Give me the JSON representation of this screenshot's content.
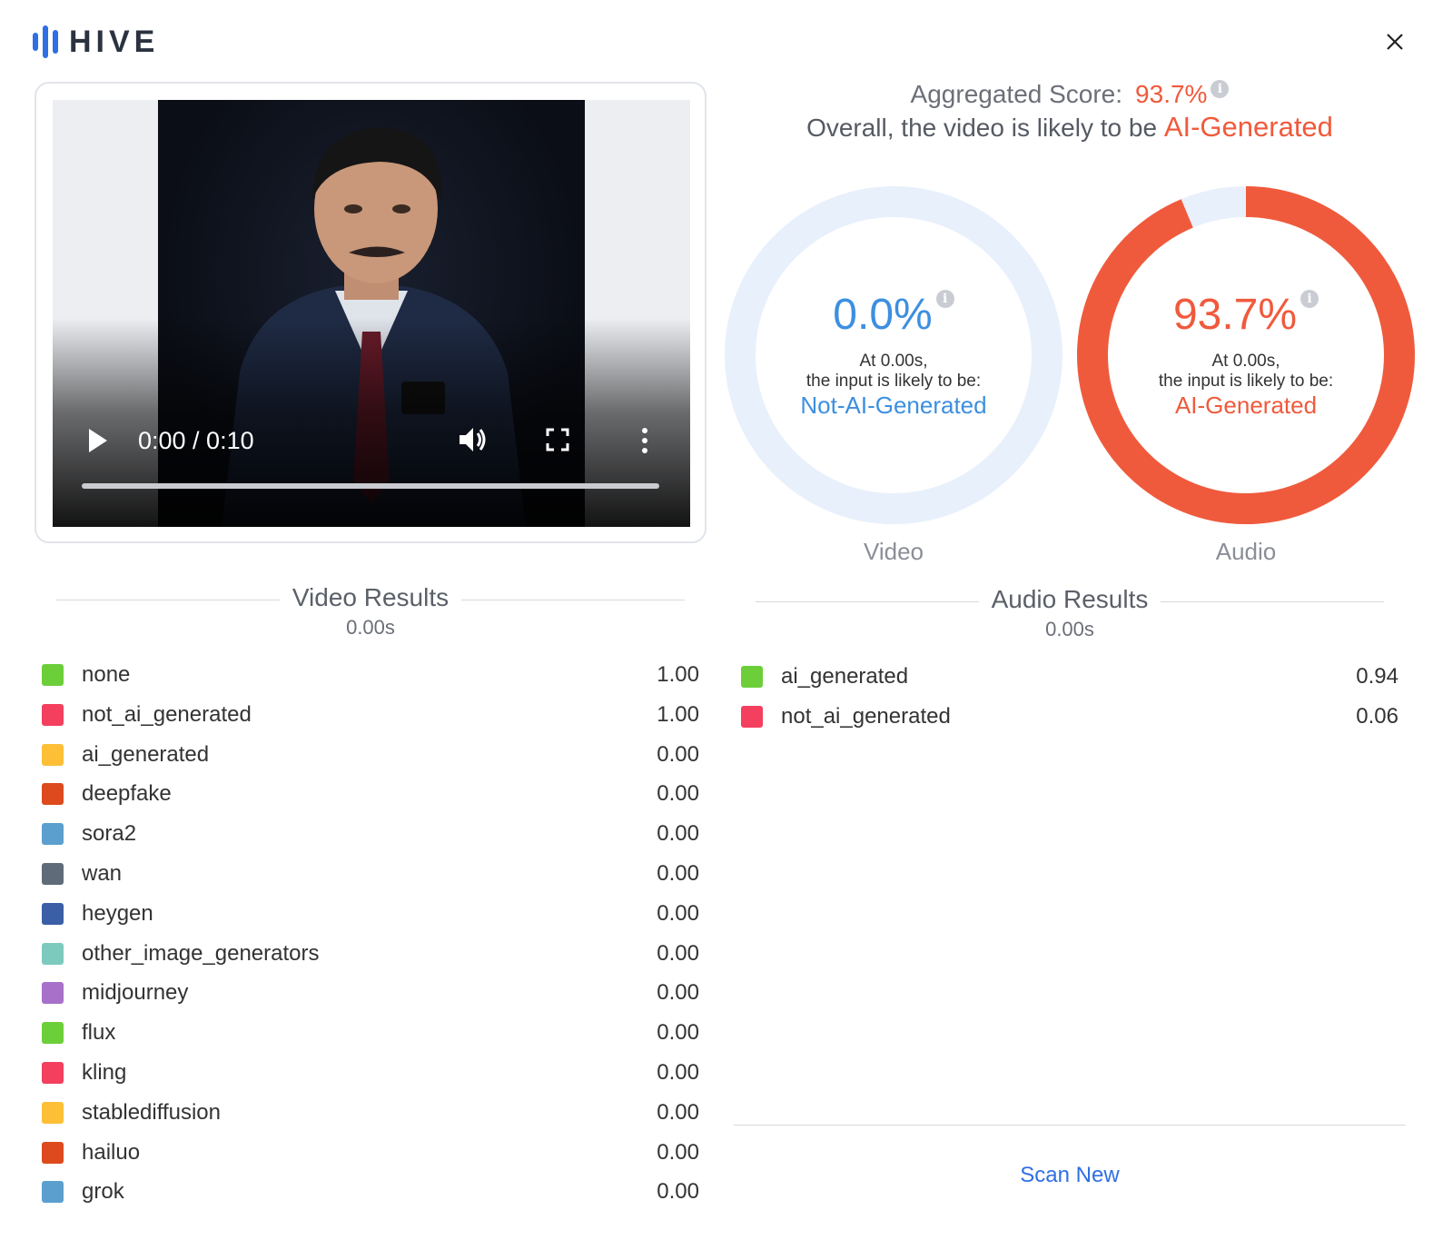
{
  "brand": {
    "name": "HIVE"
  },
  "colors": {
    "accent_blue": "#2f6fe4",
    "accent_red": "#f05a3c",
    "gauge_track": "#e8f0fc",
    "not_ai_blue": "#3d8fe0"
  },
  "player": {
    "time": "0:00 / 0:10",
    "progress": 0
  },
  "aggregate": {
    "label": "Aggregated Score:",
    "value": "93.7%",
    "overall_text": "Overall, the video is likely to be",
    "verdict": "AI-Generated"
  },
  "gauges": [
    {
      "name": "Video",
      "percent_text": "0.0%",
      "fraction": 0.0,
      "at_line": "At 0.00s,",
      "likely_line": "the input is likely to be:",
      "verdict": "Not-AI-Generated",
      "color": "#3d8fe0"
    },
    {
      "name": "Audio",
      "percent_text": "93.7%",
      "fraction": 0.937,
      "at_line": "At 0.00s,",
      "likely_line": "the input is likely to be:",
      "verdict": "AI-Generated",
      "color": "#f05a3c"
    }
  ],
  "video_results": {
    "title": "Video Results",
    "time": "0.00s",
    "items": [
      {
        "label": "none",
        "value": "1.00",
        "color": "#6ccf3a"
      },
      {
        "label": "not_ai_generated",
        "value": "1.00",
        "color": "#f43f5e"
      },
      {
        "label": "ai_generated",
        "value": "0.00",
        "color": "#fcbf36"
      },
      {
        "label": "deepfake",
        "value": "0.00",
        "color": "#dd4a1e"
      },
      {
        "label": "sora2",
        "value": "0.00",
        "color": "#5b9fce"
      },
      {
        "label": "wan",
        "value": "0.00",
        "color": "#5f6b78"
      },
      {
        "label": "heygen",
        "value": "0.00",
        "color": "#3b5ea6"
      },
      {
        "label": "other_image_generators",
        "value": "0.00",
        "color": "#7ccabd"
      },
      {
        "label": "midjourney",
        "value": "0.00",
        "color": "#a870c9"
      },
      {
        "label": "flux",
        "value": "0.00",
        "color": "#6ccf3a"
      },
      {
        "label": "kling",
        "value": "0.00",
        "color": "#f43f5e"
      },
      {
        "label": "stablediffusion",
        "value": "0.00",
        "color": "#fcbf36"
      },
      {
        "label": "hailuo",
        "value": "0.00",
        "color": "#dd4a1e"
      },
      {
        "label": "grok",
        "value": "0.00",
        "color": "#5b9fce"
      }
    ]
  },
  "audio_results": {
    "title": "Audio Results",
    "time": "0.00s",
    "items": [
      {
        "label": "ai_generated",
        "value": "0.94",
        "color": "#6ccf3a"
      },
      {
        "label": "not_ai_generated",
        "value": "0.06",
        "color": "#f43f5e"
      }
    ]
  },
  "actions": {
    "scan_new": "Scan New"
  }
}
